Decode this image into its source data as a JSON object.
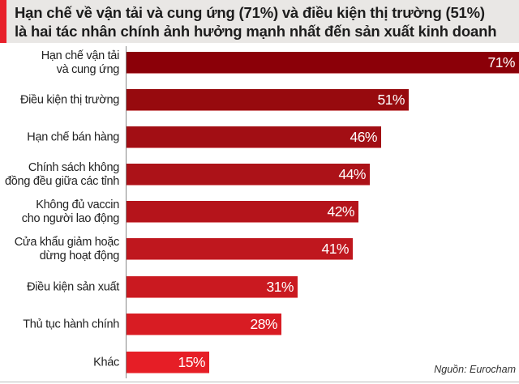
{
  "header": {
    "accent_color": "#e8202a",
    "title_line1": "Hạn chế về vận tải và cung ứng (71%) và điều kiện thị trường (51%)",
    "title_line2": "là hai tác nhân chính ảnh hưởng mạnh nhất đến sản xuất kinh doanh"
  },
  "source": "Nguồn: Eurocham",
  "chart_data": {
    "type": "bar",
    "orientation": "horizontal",
    "title": "Hạn chế về vận tải và cung ứng (71%) và điều kiện thị trường (51%) là hai tác nhân chính ảnh hưởng mạnh nhất đến sản xuất kinh doanh",
    "xlabel": "",
    "ylabel": "",
    "unit": "%",
    "xlim": [
      0,
      71
    ],
    "grid": false,
    "legend": null,
    "source": "Nguồn: Eurocham",
    "categories": [
      "Hạn chế vận tải và cung ứng",
      "Điều kiện thị trường",
      "Hạn chế bán hàng",
      "Chính sách không đồng đều giữa các tỉnh",
      "Không đủ vaccin cho người lao động",
      "Cửa khẩu giảm hoặc dừng hoạt động",
      "Điều kiện sản xuất",
      "Thủ tục hành chính",
      "Khác"
    ],
    "values": [
      71,
      51,
      46,
      44,
      42,
      41,
      31,
      28,
      15
    ],
    "bars": [
      {
        "line1": "Hạn chế vận tải",
        "line2": "và cung ứng",
        "value": 71,
        "value_label": "71%",
        "color": "#8b0008"
      },
      {
        "line1": "Điều kiện thị trường",
        "line2": "",
        "value": 51,
        "value_label": "51%",
        "color": "#970a0e"
      },
      {
        "line1": "Hạn chế bán hàng",
        "line2": "",
        "value": 46,
        "value_label": "46%",
        "color": "#a20e14"
      },
      {
        "line1": "Chính sách không",
        "line2": "đồng đều giữa các tỉnh",
        "value": 44,
        "value_label": "44%",
        "color": "#ac1218"
      },
      {
        "line1": "Không đủ vaccin",
        "line2": "cho người lao động",
        "value": 42,
        "value_label": "42%",
        "color": "#b5141b"
      },
      {
        "line1": "Cửa khẩu giảm hoặc",
        "line2": "dừng hoạt động",
        "value": 41,
        "value_label": "41%",
        "color": "#bf171e"
      },
      {
        "line1": "Điều kiện sản xuất",
        "line2": "",
        "value": 31,
        "value_label": "31%",
        "color": "#ca1920"
      },
      {
        "line1": "Thủ tục hành chính",
        "line2": "",
        "value": 28,
        "value_label": "28%",
        "color": "#d81c23"
      },
      {
        "line1": "Khác",
        "line2": "",
        "value": 15,
        "value_label": "15%",
        "color": "#e61e26"
      }
    ]
  }
}
